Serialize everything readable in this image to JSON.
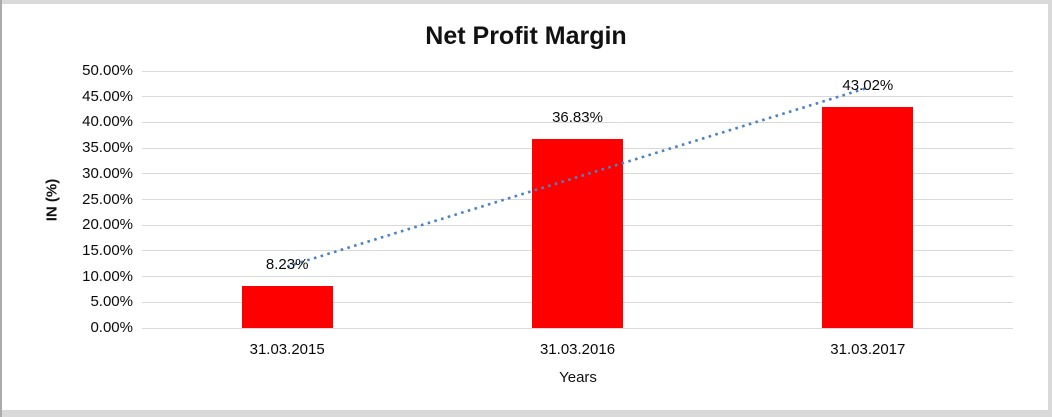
{
  "chart_data": {
    "type": "bar",
    "title": "Net Profit Margin",
    "xlabel": "Years",
    "ylabel": "IN (%)",
    "categories": [
      "31.03.2015",
      "31.03.2016",
      "31.03.2017"
    ],
    "values": [
      8.23,
      36.83,
      43.02
    ],
    "data_labels": [
      "8.23%",
      "36.83%",
      "43.02%"
    ],
    "ylim": [
      0,
      50
    ],
    "ytick_step": 5,
    "ytick_labels": [
      "50.00%",
      "45.00%",
      "40.00%",
      "35.00%",
      "30.00%",
      "25.00%",
      "20.00%",
      "15.00%",
      "10.00%",
      "5.00%",
      "0.00%"
    ],
    "grid": true,
    "legend": "none",
    "bar_color": "#ff0000",
    "gridline_color": "#d9d9d9",
    "trendline": {
      "type": "linear",
      "style": "dotted",
      "color": "#4a82c4",
      "series": "Net Profit Margin"
    }
  }
}
